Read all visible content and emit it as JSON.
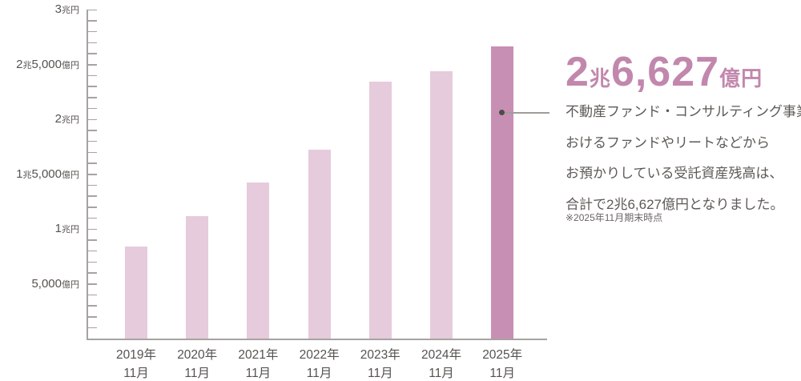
{
  "chart_data": {
    "type": "bar",
    "unit": "億円",
    "categories": [
      {
        "year": "2019年",
        "month": "11月"
      },
      {
        "year": "2020年",
        "month": "11月"
      },
      {
        "year": "2021年",
        "month": "11月"
      },
      {
        "year": "2022年",
        "month": "11月"
      },
      {
        "year": "2023年",
        "month": "11月"
      },
      {
        "year": "2024年",
        "month": "11月"
      },
      {
        "year": "2025年",
        "month": "11月"
      }
    ],
    "values": [
      8400,
      11200,
      14200,
      17200,
      23400,
      24400,
      26627
    ],
    "ylim": [
      0,
      30000
    ],
    "y_ticks": {
      "minor_step": 1000,
      "labels": [
        {
          "value": 30000,
          "label": "3兆円"
        },
        {
          "value": 25000,
          "label": "2兆5,000億円"
        },
        {
          "value": 20000,
          "label": "2兆円"
        },
        {
          "value": 15000,
          "label": "1兆5,000億円"
        },
        {
          "value": 10000,
          "label": "1兆円"
        },
        {
          "value": 5000,
          "label": "5,000億円"
        }
      ]
    },
    "grid": false,
    "legend": false,
    "bar_color": "#e6cbdc",
    "highlight_color": "#c88fb5",
    "highlight_index": 6,
    "axis_color": "#a7a3a0",
    "label_color": "#56534f"
  },
  "callout": {
    "headline": {
      "value_lead": "2",
      "unit_lead": "兆",
      "value_main": "6,627",
      "unit_main": "億円",
      "color": "#c287ad"
    },
    "description_lines": [
      "不動産ファンド・コンサルティング事業に",
      "おけるファンドやリートなどから",
      "お預かりしている受託資産残高は、",
      "合計で2兆6,627億円となりました。"
    ],
    "footnote": "※2025年11月期末時点",
    "text_color": "#5d5955",
    "footnote_color": "#6a6662"
  }
}
